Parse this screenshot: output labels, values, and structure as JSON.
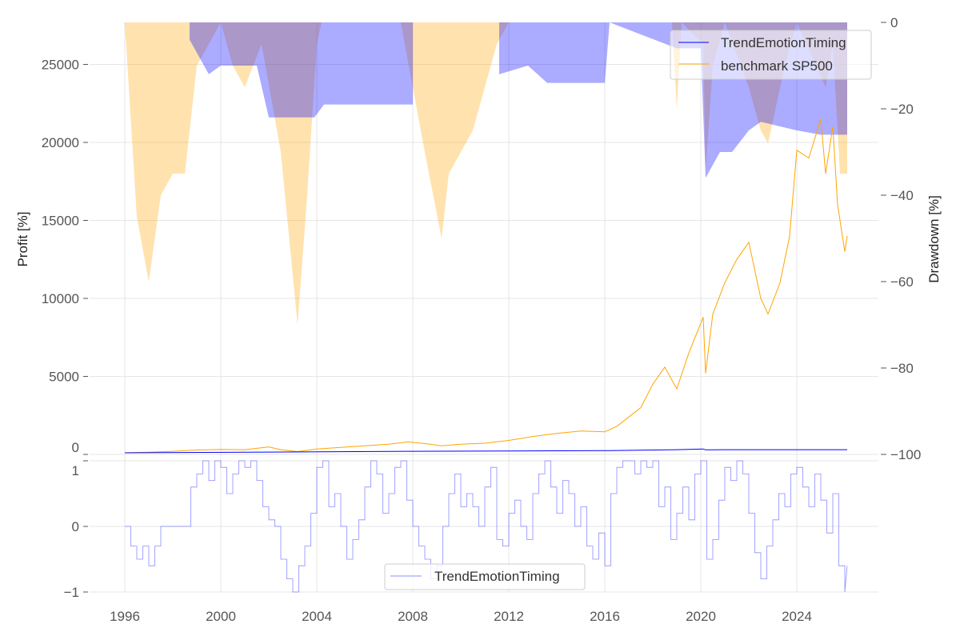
{
  "chart_data": [
    {
      "type": "line",
      "ylabel": "Profit [%]",
      "ylim": [
        0,
        27600
      ],
      "yticks": [
        0,
        5000,
        10000,
        15000,
        20000,
        25000
      ],
      "grid": true,
      "legend_position": "top-right",
      "series": [
        {
          "name": "TrendEmotionTiming",
          "color": "#0000ff",
          "x": [
            1996,
            2002,
            2008,
            2012,
            2016,
            2019,
            2020.1,
            2020.2,
            2021,
            2026.1
          ],
          "y": [
            100,
            150,
            200,
            220,
            240,
            300,
            350,
            290,
            300,
            300
          ]
        },
        {
          "name": "benchmark SP500",
          "color": "#ffa500",
          "x": [
            1996,
            1997,
            1998,
            1999,
            2000,
            2001,
            2002,
            2002.5,
            2003.2,
            2004,
            2005,
            2006,
            2007,
            2007.8,
            2008.5,
            2009.2,
            2010,
            2011,
            2012,
            2013,
            2014,
            2015,
            2016,
            2016.5,
            2017,
            2017.5,
            2018,
            2018.5,
            2019,
            2019.5,
            2020.1,
            2020.2,
            2020.5,
            2021,
            2021.5,
            2022,
            2022.5,
            2022.8,
            2023.3,
            2023.7,
            2024,
            2024.5,
            2025,
            2025.2,
            2025.5,
            2025.7,
            2026,
            2026.1
          ],
          "y": [
            100,
            140,
            200,
            280,
            320,
            300,
            480,
            300,
            180,
            350,
            450,
            550,
            650,
            800,
            700,
            550,
            650,
            720,
            900,
            1150,
            1350,
            1500,
            1450,
            1800,
            2400,
            3000,
            4500,
            5600,
            4200,
            6500,
            8800,
            5200,
            9000,
            11000,
            12500,
            13600,
            10000,
            9000,
            11000,
            14000,
            19500,
            19000,
            21500,
            18000,
            21000,
            16000,
            13000,
            14000
          ]
        }
      ]
    },
    {
      "type": "area",
      "ylabel": "Drawdown [%]",
      "ylim": [
        -100,
        0
      ],
      "yticks": [
        0,
        -20,
        -40,
        -60,
        -80,
        -100
      ],
      "ytick_labels": [
        "0",
        "−20",
        "−40",
        "−60",
        "−80",
        "−100"
      ],
      "series": [
        {
          "color": "#ffa500",
          "x": [
            1996,
            1996.5,
            1997,
            1997.5,
            1998,
            1998.5,
            1999,
            2000,
            2000.5,
            2001,
            2001.7,
            2002.5,
            2003.2,
            2003.6,
            2004,
            2004.2,
            2007.5,
            2008,
            2008.5,
            2009.2,
            2009.5,
            2010,
            2010.5,
            2011,
            2011.5,
            2012,
            2018.8,
            2019,
            2019.2,
            2020.1,
            2020.2,
            2020.5,
            2021,
            2022,
            2022.5,
            2022.8,
            2023.5,
            2024,
            2025.2,
            2025.5,
            2025.8,
            2026.1
          ],
          "y": [
            0,
            -45,
            -60,
            -40,
            -35,
            -35,
            -10,
            0,
            -10,
            -15,
            -5,
            -30,
            -70,
            -40,
            -5,
            0,
            0,
            -15,
            -30,
            -50,
            -35,
            -30,
            -25,
            -15,
            -5,
            0,
            0,
            -20,
            0,
            -5,
            -34,
            -10,
            0,
            -15,
            -25,
            -28,
            -10,
            0,
            -15,
            -5,
            -35,
            -35
          ]
        },
        {
          "color": "#0000ff",
          "x": [
            1996,
            1998.7,
            1998.7,
            1999.5,
            2000,
            2001.5,
            2002,
            2003.9,
            2004.3,
            2008,
            2008,
            2011.6,
            2011.6,
            2012.8,
            2013.6,
            2016,
            2016.2,
            2019,
            2020,
            2020.2,
            2020.8,
            2021.3,
            2022,
            2022.5,
            2024,
            2025,
            2026.1
          ],
          "y": [
            0,
            0,
            -4,
            -12,
            -10,
            -10,
            -22,
            -22,
            -19,
            -19,
            0,
            0,
            -12,
            -10,
            -14,
            -14,
            0,
            -6,
            -6,
            -36,
            -30,
            -30,
            -25,
            -23,
            -25,
            -26,
            -26
          ]
        }
      ]
    },
    {
      "type": "line",
      "ylim": [
        -1,
        1
      ],
      "yticks": [
        -1,
        0,
        1
      ],
      "xticks": [
        1996,
        2000,
        2004,
        2008,
        2012,
        2016,
        2020,
        2024
      ],
      "legend_position": "bottom-center",
      "series": [
        {
          "name": "TrendEmotionTiming",
          "color": "#0000ff",
          "x_start": 1996,
          "x_step": 0.25,
          "y": [
            0,
            -0.3,
            -0.5,
            -0.3,
            -0.6,
            -0.3,
            0,
            0,
            0,
            0,
            0,
            0.6,
            0.8,
            1,
            0.7,
            1,
            0.9,
            0.5,
            0.8,
            1,
            0.9,
            1,
            0.7,
            0.3,
            0.1,
            0,
            -0.5,
            -0.8,
            -1,
            -0.6,
            -0.3,
            0.2,
            0.9,
            1,
            0.3,
            0.5,
            0,
            -0.5,
            -0.2,
            0.1,
            0.6,
            1,
            0.8,
            0.2,
            0.5,
            0.9,
            1,
            0.4,
            0,
            -0.3,
            -0.5,
            -0.8,
            -0.6,
            0,
            0.5,
            0.8,
            0.3,
            0.5,
            0.3,
            0,
            0.6,
            0.9,
            -0.2,
            -0.3,
            0.2,
            0.4,
            0,
            -0.2,
            0.5,
            0.8,
            1,
            0.6,
            0.2,
            0.7,
            0.5,
            0,
            0.3,
            -0.3,
            -0.5,
            -0.1,
            -0.6,
            0.5,
            0.9,
            1,
            1,
            0.8,
            1,
            0.9,
            1,
            0.3,
            0.6,
            -0.2,
            0.2,
            0.6,
            0.1,
            0.8,
            1,
            -0.5,
            -0.2,
            0.4,
            0.9,
            0.7,
            1,
            0.8,
            0.2,
            -0.4,
            -0.8,
            -0.3,
            0.1,
            0.5,
            0.3,
            0.8,
            0.9,
            0.6,
            0.3,
            0.8,
            0.4,
            -0.1,
            0.5,
            -0.6,
            -1
          ]
        }
      ]
    }
  ]
}
